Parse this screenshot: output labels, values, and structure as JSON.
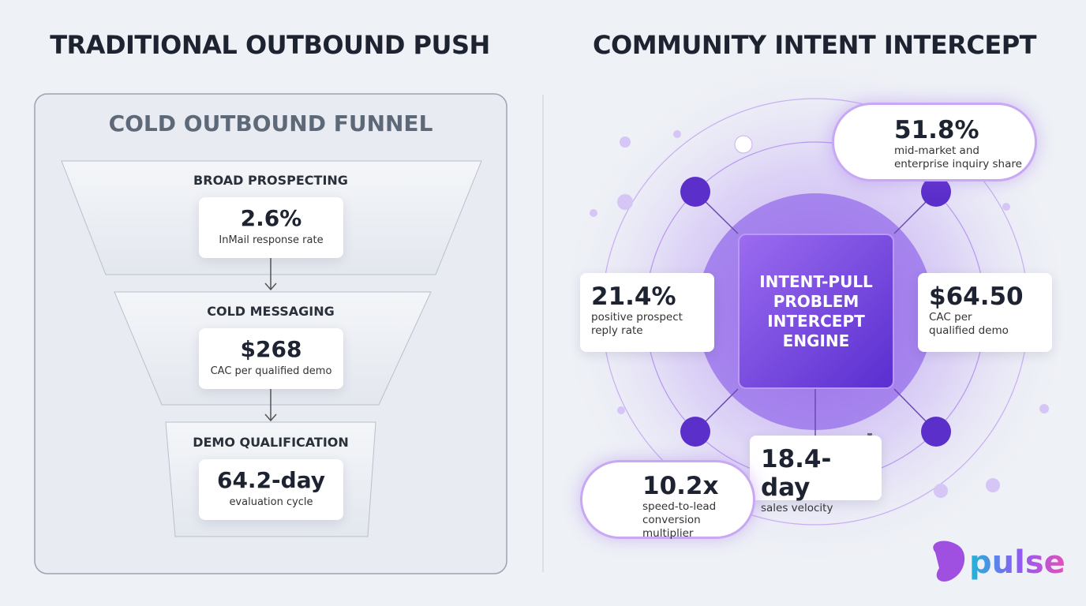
{
  "left": {
    "title": "TRADITIONAL OUTBOUND PUSH",
    "panel_title": "COLD OUTBOUND FUNNEL",
    "stages": [
      {
        "label": "BROAD PROSPECTING",
        "metric": "2.6%",
        "caption": "InMail response rate"
      },
      {
        "label": "COLD MESSAGING",
        "metric": "$268",
        "caption": "CAC per qualified demo"
      },
      {
        "label": "DEMO QUALIFICATION",
        "metric": "64.2-day",
        "caption": "evaluation cycle"
      }
    ]
  },
  "right": {
    "title": "COMMUNITY INTENT INTERCEPT",
    "engine": "INTENT-PULL PROBLEM INTERCEPT ENGINE",
    "cards": [
      {
        "metric": "51.8%",
        "caption": "mid-market and enterprise inquiry share"
      },
      {
        "metric": "21.4%",
        "caption": "positive prospect reply rate"
      },
      {
        "metric": "$64.50",
        "caption": "CAC per qualified demo"
      },
      {
        "metric": "18.4-day",
        "caption": "sales velocity"
      },
      {
        "metric": "10.2x",
        "caption": "speed-to-lead conversion multiplier"
      }
    ]
  },
  "logo": "pulse"
}
